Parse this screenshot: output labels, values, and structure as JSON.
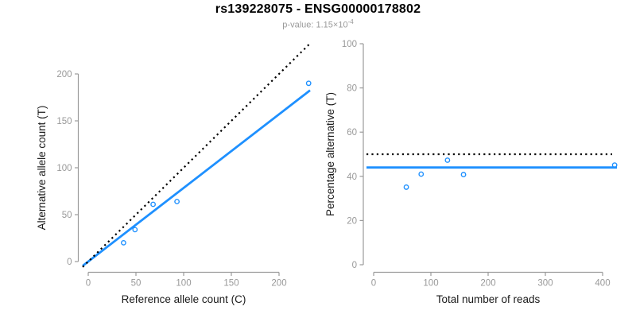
{
  "header": {
    "title": "rs139228075 - ENSG00000178802",
    "p_label": "p-value: 1.15×10",
    "p_exponent": "-4"
  },
  "colors": {
    "accent_blue": "#1E90FF",
    "line_black": "#000000",
    "axis_gray": "#9b9b9b",
    "tick_label_gray": "#999999",
    "axis_title_black": "#1a1a1a"
  },
  "chart_data": [
    {
      "type": "scatter",
      "panel": "left",
      "xlabel": "Reference allele count (C)",
      "ylabel": "Alternative allele count (T)",
      "x_ticks": [
        0,
        50,
        100,
        150,
        200
      ],
      "y_ticks": [
        0,
        50,
        100,
        150,
        200
      ],
      "xlim": [
        0,
        232
      ],
      "ylim": [
        0,
        232
      ],
      "grid": false,
      "legend": "none",
      "points": [
        [
          37,
          20
        ],
        [
          49,
          34
        ],
        [
          68,
          61
        ],
        [
          93,
          64
        ],
        [
          231,
          190
        ]
      ],
      "fit_line": {
        "type": "through-origin",
        "slope": 0.785,
        "style": "solid-blue"
      },
      "reference_line": {
        "type": "identity",
        "slope": 1,
        "style": "dotted-black"
      }
    },
    {
      "type": "scatter",
      "panel": "right",
      "xlabel": "Total number of reads",
      "ylabel": "Percentage alternative (T)",
      "x_ticks": [
        0,
        100,
        200,
        300,
        400
      ],
      "y_ticks": [
        0,
        20,
        40,
        60,
        80,
        100
      ],
      "xlim": [
        0,
        430
      ],
      "ylim": [
        0,
        100
      ],
      "grid": false,
      "legend": "none",
      "points": [
        [
          57,
          35.1
        ],
        [
          83,
          41.0
        ],
        [
          129,
          47.3
        ],
        [
          157,
          40.8
        ],
        [
          421,
          45.1
        ]
      ],
      "fit_line": {
        "type": "horizontal",
        "y": 44,
        "style": "solid-blue"
      },
      "reference_line": {
        "type": "horizontal",
        "y": 50,
        "style": "dotted-black"
      }
    }
  ]
}
